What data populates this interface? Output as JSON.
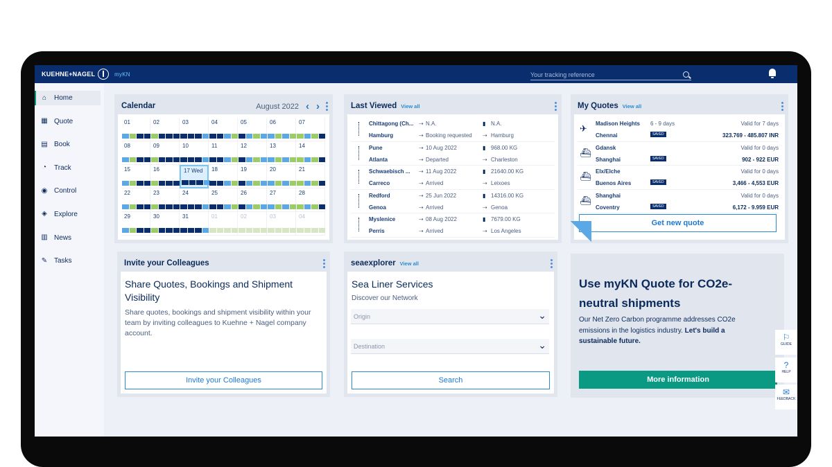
{
  "brand": {
    "logo": "KUEHNE+NAGEL",
    "app": "myKN"
  },
  "search": {
    "placeholder": "Your tracking reference"
  },
  "sidebar": {
    "items": [
      {
        "label": "Home",
        "icon": "home-icon"
      },
      {
        "label": "Quote",
        "icon": "calculator-icon"
      },
      {
        "label": "Book",
        "icon": "book-icon"
      },
      {
        "label": "Track",
        "icon": "track-icon"
      },
      {
        "label": "Control",
        "icon": "control-icon"
      },
      {
        "label": "Explore",
        "icon": "compass-icon"
      },
      {
        "label": "News",
        "icon": "news-icon"
      },
      {
        "label": "Tasks",
        "icon": "tasks-icon"
      }
    ]
  },
  "calendar": {
    "title": "Calendar",
    "month": "August 2022",
    "days": [
      "01",
      "02",
      "03",
      "04",
      "05",
      "06",
      "07",
      "08",
      "09",
      "10",
      "11",
      "12",
      "13",
      "14",
      "15",
      "16",
      "17 Wed",
      "18",
      "19",
      "20",
      "21",
      "22",
      "23",
      "24",
      "25",
      "26",
      "27",
      "28",
      "29",
      "30",
      "31",
      "01",
      "02",
      "03",
      "04"
    ]
  },
  "last_viewed": {
    "title": "Last Viewed",
    "view_all": "View all",
    "rows": [
      {
        "from": "Chittagong (Ch...",
        "to": "Hamburg",
        "dep": "N.A.",
        "arr": "Booking requested",
        "weight": "N.A.",
        "dest": "Hamburg"
      },
      {
        "from": "Pune",
        "to": "Atlanta",
        "dep": "10 Aug 2022",
        "arr": "Departed",
        "weight": "968.00 KG",
        "dest": "Charleston"
      },
      {
        "from": "Schwaebisch ...",
        "to": "Carreco",
        "dep": "11 Aug 2022",
        "arr": "Arrived",
        "weight": "21640.00 KG",
        "dest": "Leixoes"
      },
      {
        "from": "Redford",
        "to": "Genoa",
        "dep": "25 Jun 2022",
        "arr": "Arrived",
        "weight": "14316.00 KG",
        "dest": "Genoa"
      },
      {
        "from": "Myslenice",
        "to": "Perris",
        "dep": "08 Aug 2022",
        "arr": "Arrived",
        "weight": "7679.00 KG",
        "dest": "Los Angeles"
      }
    ]
  },
  "quotes": {
    "title": "My Quotes",
    "view_all": "View all",
    "saved": "SAVED",
    "button": "Get new quote",
    "rows": [
      {
        "from": "Madison Heights",
        "to": "Chennai",
        "days": "6 - 9 days",
        "valid": "Valid for 7 days",
        "price": "323.769 - 485.807 INR"
      },
      {
        "from": "Gdansk",
        "to": "Shanghai",
        "days": "",
        "valid": "Valid for 0 days",
        "price": "902 - 922 EUR"
      },
      {
        "from": "Elx/Elche",
        "to": "Buenos Aires",
        "days": "",
        "valid": "Valid for 0 days",
        "price": "3,466 - 4,553 EUR"
      },
      {
        "from": "Shanghai",
        "to": "Coventry",
        "days": "",
        "valid": "Valid for 0 days",
        "price": "6,172 - 9.959 EUR"
      }
    ]
  },
  "invite": {
    "title": "Invite your Colleagues",
    "heading": "Share Quotes, Bookings and Shipment Visibility",
    "text": "Share quotes, bookings and shipment visibility within your team by inviting colleagues to Kuehne + Nagel company account.",
    "button": "Invite your Colleagues"
  },
  "seaexplorer": {
    "title": "seaexplorer",
    "view_all": "View all",
    "heading": "Sea Liner Services",
    "sub": "Discover our Network",
    "origin": "Origin",
    "destination": "Destination",
    "button": "Search"
  },
  "promo": {
    "title": "Use myKN Quote for CO2e-neutral shipments",
    "text_a": "Our Net Zero Carbon programme addresses CO2e emissions in the logistics industry. ",
    "text_b": "Let's build a sustainable future.",
    "button": "More information"
  },
  "helpers": [
    {
      "label": "GUIDE",
      "icon": "guide-icon"
    },
    {
      "label": "HELP",
      "icon": "help-icon"
    },
    {
      "label": "FEEDBACK",
      "icon": "feedback-icon"
    }
  ],
  "colors": {
    "navy": "#0a2e6d",
    "teal": "#0a9a84",
    "blue": "#2c8bd0",
    "green": "#9ccc65",
    "lightblue": "#5aa9e6"
  }
}
